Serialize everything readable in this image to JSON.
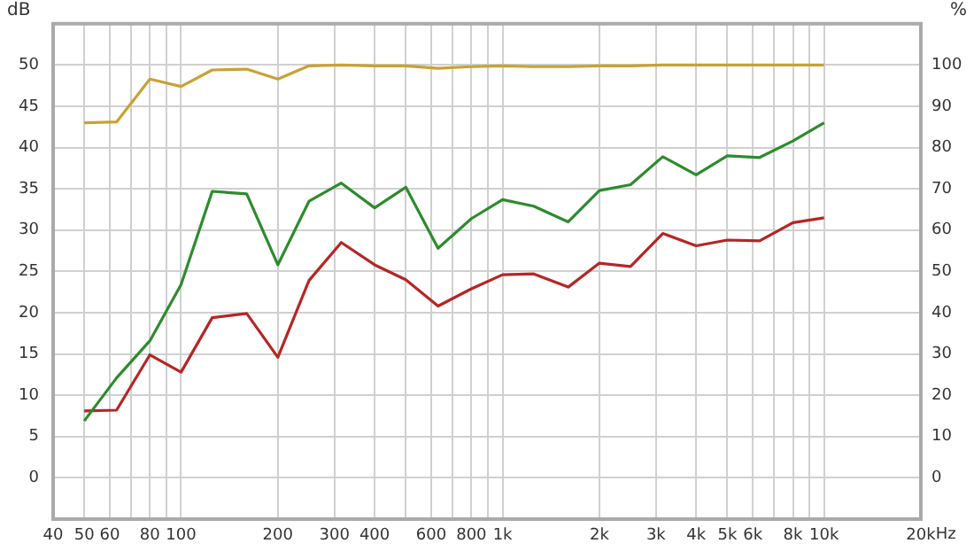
{
  "chart_data": {
    "type": "line",
    "ylabel": "dB",
    "y2label": "%",
    "log": "x",
    "x": [
      50,
      63,
      80,
      100,
      125,
      160,
      200,
      250,
      315,
      400,
      500,
      630,
      800,
      1000,
      1250,
      1600,
      2000,
      2500,
      3150,
      4000,
      5000,
      6300,
      8000,
      10000
    ],
    "xlim": [
      40,
      20000
    ],
    "xticks": [
      40,
      50,
      60,
      {
        "value": 70,
        "label": null
      },
      80,
      {
        "value": 90,
        "label": null
      },
      100,
      200,
      300,
      400,
      {
        "value": 500,
        "label": null
      },
      600,
      {
        "value": 700,
        "label": null
      },
      800,
      {
        "value": 900,
        "label": null
      },
      {
        "value": 1000,
        "label": "1k"
      },
      {
        "value": 2000,
        "label": "2k"
      },
      {
        "value": 3000,
        "label": "3k"
      },
      {
        "value": 4000,
        "label": "4k"
      },
      {
        "value": 5000,
        "label": "5k"
      },
      {
        "value": 6000,
        "label": "6k"
      },
      {
        "value": 7000,
        "label": null
      },
      {
        "value": 8000,
        "label": "8k"
      },
      {
        "value": 9000,
        "label": null
      },
      {
        "value": 10000,
        "label": "10k"
      },
      {
        "value": 20000,
        "label": "20k"
      }
    ],
    "xlabel": "Hz",
    "ylim": [
      -5,
      55
    ],
    "yticks": [
      0,
      5,
      10,
      15,
      20,
      25,
      30,
      35,
      40,
      45,
      50
    ],
    "y2lim": [
      -10,
      110
    ],
    "y2ticks": [
      0,
      10,
      20,
      30,
      40,
      50,
      60,
      70,
      80,
      90,
      100
    ],
    "grid": true,
    "marker": "none",
    "line_style": "solid",
    "legend": false,
    "series": [
      {
        "color": "#c9a235",
        "axis": "y2",
        "values": [
          86,
          86.2,
          96.6,
          94.8,
          98.8,
          99,
          96.6,
          99.8,
          100,
          99.8,
          99.8,
          99.2,
          99.6,
          99.8,
          99.6,
          99.6,
          99.8,
          99.8,
          100,
          100,
          100,
          100,
          100,
          100
        ]
      },
      {
        "color": "#2e8b2e",
        "values": [
          6.9,
          12.1,
          16.6,
          23.4,
          34.7,
          34.4,
          25.8,
          33.5,
          35.7,
          32.7,
          35.2,
          27.8,
          31.4,
          33.7,
          32.9,
          31.0,
          34.8,
          35.5,
          38.9,
          36.7,
          39.0,
          38.8,
          40.8,
          43.0
        ]
      },
      {
        "color": "#b52626",
        "values": [
          8.1,
          8.2,
          14.9,
          12.8,
          19.4,
          19.9,
          14.6,
          23.9,
          28.5,
          25.8,
          24.0,
          20.8,
          22.9,
          24.6,
          24.7,
          23.1,
          26.0,
          25.6,
          29.6,
          28.1,
          28.8,
          28.7,
          30.9,
          31.5
        ]
      }
    ]
  }
}
